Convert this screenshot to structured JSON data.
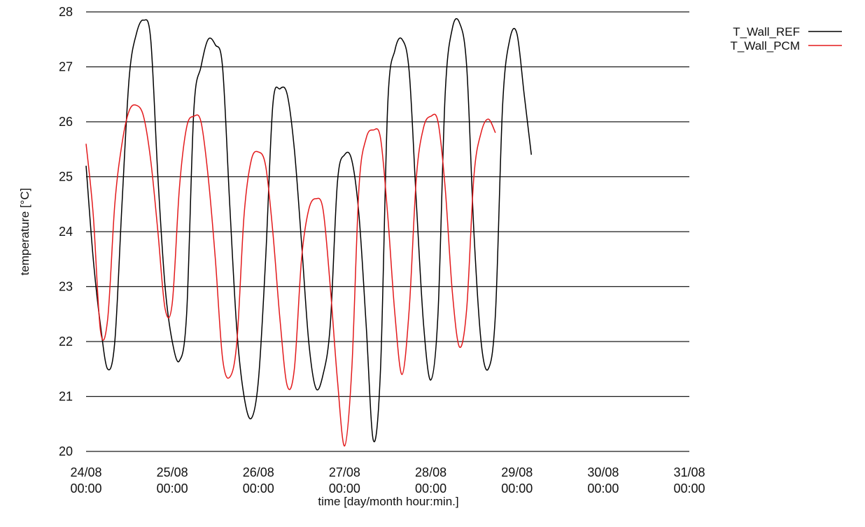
{
  "chart_data": {
    "type": "line",
    "title": "",
    "xlabel": "time [day/month hour:min.]",
    "ylabel": "temperature [°C]",
    "ylim": [
      20,
      28
    ],
    "xlim": [
      "24/08 00:00",
      "31/08 00:00"
    ],
    "grid": "horizontal",
    "legend_position": "top-right",
    "x_ticks": [
      {
        "date": "24/08",
        "time": "00:00"
      },
      {
        "date": "25/08",
        "time": "00:00"
      },
      {
        "date": "26/08",
        "time": "00:00"
      },
      {
        "date": "27/08",
        "time": "00:00"
      },
      {
        "date": "28/08",
        "time": "00:00"
      },
      {
        "date": "29/08",
        "time": "00:00"
      },
      {
        "date": "30/08",
        "time": "00:00"
      },
      {
        "date": "31/08",
        "time": "00:00"
      }
    ],
    "y_ticks": [
      "20",
      "21",
      "22",
      "23",
      "24",
      "25",
      "26",
      "27",
      "28"
    ],
    "series": [
      {
        "name": "T_Wall_REF",
        "color": "#000000",
        "points": [
          [
            "24/08 00:00",
            25.2
          ],
          [
            "24/08 02:00",
            23.5
          ],
          [
            "24/08 04:00",
            22.3
          ],
          [
            "24/08 06:00",
            21.5
          ],
          [
            "24/08 08:00",
            22.0
          ],
          [
            "24/08 10:00",
            24.5
          ],
          [
            "24/08 12:00",
            26.8
          ],
          [
            "24/08 14:00",
            27.6
          ],
          [
            "24/08 16:00",
            27.85
          ],
          [
            "24/08 18:00",
            27.5
          ],
          [
            "24/08 20:00",
            25.0
          ],
          [
            "24/08 22:00",
            23.0
          ],
          [
            "25/08 00:00",
            22.0
          ],
          [
            "25/08 02:00",
            21.65
          ],
          [
            "25/08 04:00",
            22.5
          ],
          [
            "25/08 06:00",
            26.2
          ],
          [
            "25/08 08:00",
            27.0
          ],
          [
            "25/08 10:00",
            27.5
          ],
          [
            "25/08 12:00",
            27.4
          ],
          [
            "25/08 14:00",
            27.0
          ],
          [
            "25/08 16:00",
            24.5
          ],
          [
            "25/08 18:00",
            22.2
          ],
          [
            "25/08 20:00",
            21.0
          ],
          [
            "25/08 22:00",
            20.6
          ],
          [
            "26/08 00:00",
            21.3
          ],
          [
            "26/08 02:00",
            23.5
          ],
          [
            "26/08 04:00",
            26.3
          ],
          [
            "26/08 06:00",
            26.6
          ],
          [
            "26/08 08:00",
            26.5
          ],
          [
            "26/08 10:00",
            25.5
          ],
          [
            "26/08 12:00",
            23.8
          ],
          [
            "26/08 14:00",
            22.0
          ],
          [
            "26/08 16:00",
            21.15
          ],
          [
            "26/08 18:00",
            21.4
          ],
          [
            "26/08 20:00",
            22.3
          ],
          [
            "26/08 22:00",
            24.9
          ],
          [
            "27/08 00:00",
            25.4
          ],
          [
            "27/08 02:00",
            25.3
          ],
          [
            "27/08 04:00",
            24.3
          ],
          [
            "27/08 06:00",
            22.3
          ],
          [
            "27/08 08:00",
            20.2
          ],
          [
            "27/08 10:00",
            21.5
          ],
          [
            "27/08 12:00",
            26.3
          ],
          [
            "27/08 14:00",
            27.3
          ],
          [
            "27/08 16:00",
            27.5
          ],
          [
            "27/08 18:00",
            26.9
          ],
          [
            "27/08 20:00",
            24.5
          ],
          [
            "27/08 22:00",
            22.3
          ],
          [
            "28/08 00:00",
            21.3
          ],
          [
            "28/08 02:00",
            22.5
          ],
          [
            "28/08 04:00",
            26.5
          ],
          [
            "28/08 06:00",
            27.7
          ],
          [
            "28/08 08:00",
            27.8
          ],
          [
            "28/08 10:00",
            27.0
          ],
          [
            "28/08 12:00",
            24.0
          ],
          [
            "28/08 14:00",
            22.0
          ],
          [
            "28/08 16:00",
            21.5
          ],
          [
            "28/08 18:00",
            22.5
          ],
          [
            "28/08 20:00",
            26.3
          ],
          [
            "28/08 22:00",
            27.5
          ],
          [
            "29/08 00:00",
            27.6
          ],
          [
            "29/08 02:00",
            26.5
          ],
          [
            "29/08 04:00",
            25.4
          ]
        ]
      },
      {
        "name": "T_Wall_PCM",
        "color": "#e31a1c",
        "points": [
          [
            "24/08 00:00",
            25.6
          ],
          [
            "24/08 02:00",
            24.3
          ],
          [
            "24/08 04:00",
            22.2
          ],
          [
            "24/08 06:00",
            22.4
          ],
          [
            "24/08 08:00",
            24.5
          ],
          [
            "24/08 10:00",
            25.6
          ],
          [
            "24/08 12:00",
            26.2
          ],
          [
            "24/08 14:00",
            26.3
          ],
          [
            "24/08 16:00",
            26.1
          ],
          [
            "24/08 18:00",
            25.3
          ],
          [
            "24/08 20:00",
            24.0
          ],
          [
            "24/08 22:00",
            22.6
          ],
          [
            "25/08 00:00",
            22.7
          ],
          [
            "25/08 02:00",
            24.8
          ],
          [
            "25/08 04:00",
            25.9
          ],
          [
            "25/08 06:00",
            26.1
          ],
          [
            "25/08 08:00",
            26.0
          ],
          [
            "25/08 10:00",
            25.0
          ],
          [
            "25/08 12:00",
            23.5
          ],
          [
            "25/08 14:00",
            21.7
          ],
          [
            "25/08 16:00",
            21.35
          ],
          [
            "25/08 18:00",
            22.0
          ],
          [
            "25/08 20:00",
            24.3
          ],
          [
            "25/08 22:00",
            25.3
          ],
          [
            "26/08 00:00",
            25.45
          ],
          [
            "26/08 02:00",
            25.2
          ],
          [
            "26/08 04:00",
            24.0
          ],
          [
            "26/08 06:00",
            22.4
          ],
          [
            "26/08 08:00",
            21.2
          ],
          [
            "26/08 10:00",
            21.5
          ],
          [
            "26/08 12:00",
            23.5
          ],
          [
            "26/08 14:00",
            24.4
          ],
          [
            "26/08 16:00",
            24.6
          ],
          [
            "26/08 18:00",
            24.4
          ],
          [
            "26/08 20:00",
            23.0
          ],
          [
            "26/08 22:00",
            21.3
          ],
          [
            "27/08 00:00",
            20.1
          ],
          [
            "27/08 02:00",
            21.5
          ],
          [
            "27/08 04:00",
            24.8
          ],
          [
            "27/08 06:00",
            25.7
          ],
          [
            "27/08 08:00",
            25.85
          ],
          [
            "27/08 10:00",
            25.7
          ],
          [
            "27/08 12:00",
            24.3
          ],
          [
            "27/08 14:00",
            22.5
          ],
          [
            "27/08 16:00",
            21.4
          ],
          [
            "27/08 18:00",
            22.6
          ],
          [
            "27/08 20:00",
            25.0
          ],
          [
            "27/08 22:00",
            25.9
          ],
          [
            "28/08 00:00",
            26.1
          ],
          [
            "28/08 02:00",
            26.0
          ],
          [
            "28/08 04:00",
            24.8
          ],
          [
            "28/08 06:00",
            22.9
          ],
          [
            "28/08 08:00",
            21.9
          ],
          [
            "28/08 10:00",
            22.6
          ],
          [
            "28/08 12:00",
            25.0
          ],
          [
            "28/08 14:00",
            25.8
          ],
          [
            "28/08 16:00",
            26.05
          ],
          [
            "28/08 18:00",
            25.8
          ]
        ]
      }
    ]
  }
}
